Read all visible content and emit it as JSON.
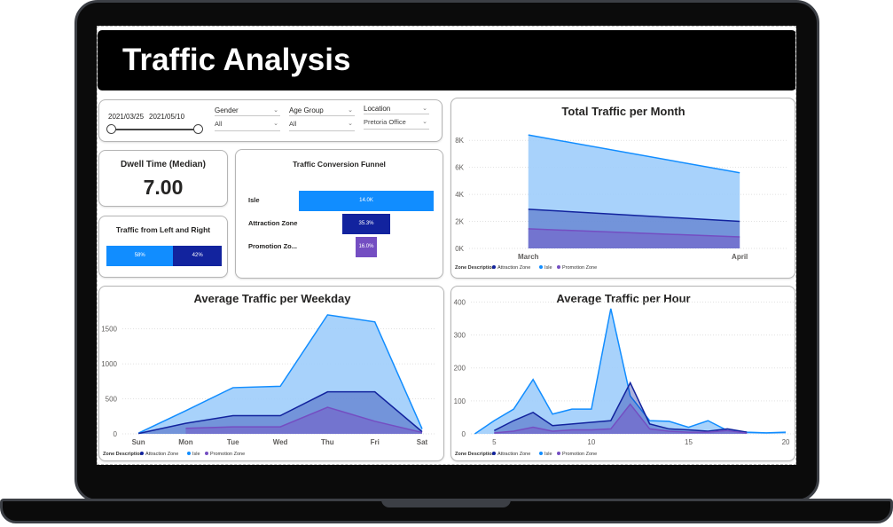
{
  "title": "Traffic Analysis",
  "colors": {
    "attraction": "#12239e",
    "isle": "#118dff",
    "promotion": "#744ec2",
    "isle_fill": "#9fcdfb"
  },
  "filters": {
    "date_start": "2021/03/25",
    "date_end": "2021/05/10",
    "gender": {
      "label": "Gender",
      "value": "All"
    },
    "age_group": {
      "label": "Age Group",
      "value": "All"
    },
    "location": {
      "label": "Location",
      "value": "Pretoria Office"
    }
  },
  "dwell": {
    "label": "Dwell Time (Median)",
    "value": "7.00"
  },
  "left_right": {
    "label": "Traffic from Left and Right",
    "left": "58%",
    "right": "42%",
    "left_fraction": 0.58
  },
  "funnel": {
    "title": "Traffic Conversion Funnel",
    "stages": [
      {
        "label": "Isle",
        "value": "14.0K",
        "fraction": 1.0
      },
      {
        "label": "Attraction Zone",
        "value": "35.3%",
        "fraction": 0.353
      },
      {
        "label": "Promotion Zo...",
        "value": "16.0%",
        "fraction": 0.16
      }
    ]
  },
  "legend": {
    "title": "Zone Description",
    "items": [
      "Attraction Zone",
      "Isle",
      "Promotion Zone"
    ]
  },
  "chart_data": [
    {
      "type": "area",
      "title": "Total Traffic per Month",
      "categories": [
        "March",
        "April"
      ],
      "ylim": [
        0,
        9000
      ],
      "yticks": [
        "0K",
        "2K",
        "4K",
        "6K",
        "8K"
      ],
      "series": [
        {
          "name": "Isle",
          "values": [
            8400,
            5600
          ]
        },
        {
          "name": "Attraction Zone",
          "values": [
            2900,
            2000
          ]
        },
        {
          "name": "Promotion Zone",
          "values": [
            1450,
            850
          ]
        }
      ]
    },
    {
      "type": "area",
      "title": "Average Traffic per Weekday",
      "categories": [
        "Sun",
        "Mon",
        "Tue",
        "Wed",
        "Thu",
        "Fri",
        "Sat"
      ],
      "ylim": [
        0,
        1800
      ],
      "yticks": [
        "0",
        "500",
        "1000",
        "1500"
      ],
      "series": [
        {
          "name": "Isle",
          "values": [
            10,
            330,
            660,
            680,
            1700,
            1600,
            70
          ]
        },
        {
          "name": "Attraction Zone",
          "values": [
            5,
            150,
            260,
            260,
            600,
            600,
            30
          ]
        },
        {
          "name": "Promotion Zone",
          "values": [
            null,
            80,
            100,
            100,
            380,
            180,
            20
          ]
        }
      ]
    },
    {
      "type": "area",
      "title": "Average Traffic per Hour",
      "x": [
        4,
        5,
        6,
        7,
        8,
        9,
        10,
        11,
        12,
        13,
        14,
        15,
        16,
        17,
        18,
        19,
        20
      ],
      "xticks": [
        "5",
        "10",
        "15",
        "20"
      ],
      "ylim": [
        0,
        420
      ],
      "yticks": [
        "0",
        "100",
        "200",
        "300",
        "400"
      ],
      "series": [
        {
          "name": "Isle",
          "x": [
            4,
            5,
            6,
            7,
            8,
            9,
            10,
            11,
            12,
            13,
            14,
            15,
            16,
            17,
            18,
            19,
            20
          ],
          "values": [
            0,
            40,
            75,
            165,
            60,
            75,
            75,
            380,
            115,
            40,
            38,
            20,
            40,
            10,
            5,
            3,
            5
          ]
        },
        {
          "name": "Attraction Zone",
          "x": [
            5,
            6,
            7,
            8,
            9,
            10,
            11,
            12,
            13,
            14,
            15,
            16,
            17,
            18
          ],
          "values": [
            10,
            40,
            65,
            25,
            30,
            35,
            40,
            155,
            30,
            15,
            12,
            8,
            15,
            5
          ]
        },
        {
          "name": "Promotion Zone",
          "x": [
            5,
            6,
            7,
            8,
            9,
            10,
            11,
            12,
            13,
            14,
            15,
            16,
            17,
            18
          ],
          "values": [
            3,
            8,
            20,
            8,
            12,
            12,
            15,
            90,
            15,
            8,
            5,
            5,
            10,
            2
          ]
        }
      ]
    }
  ]
}
